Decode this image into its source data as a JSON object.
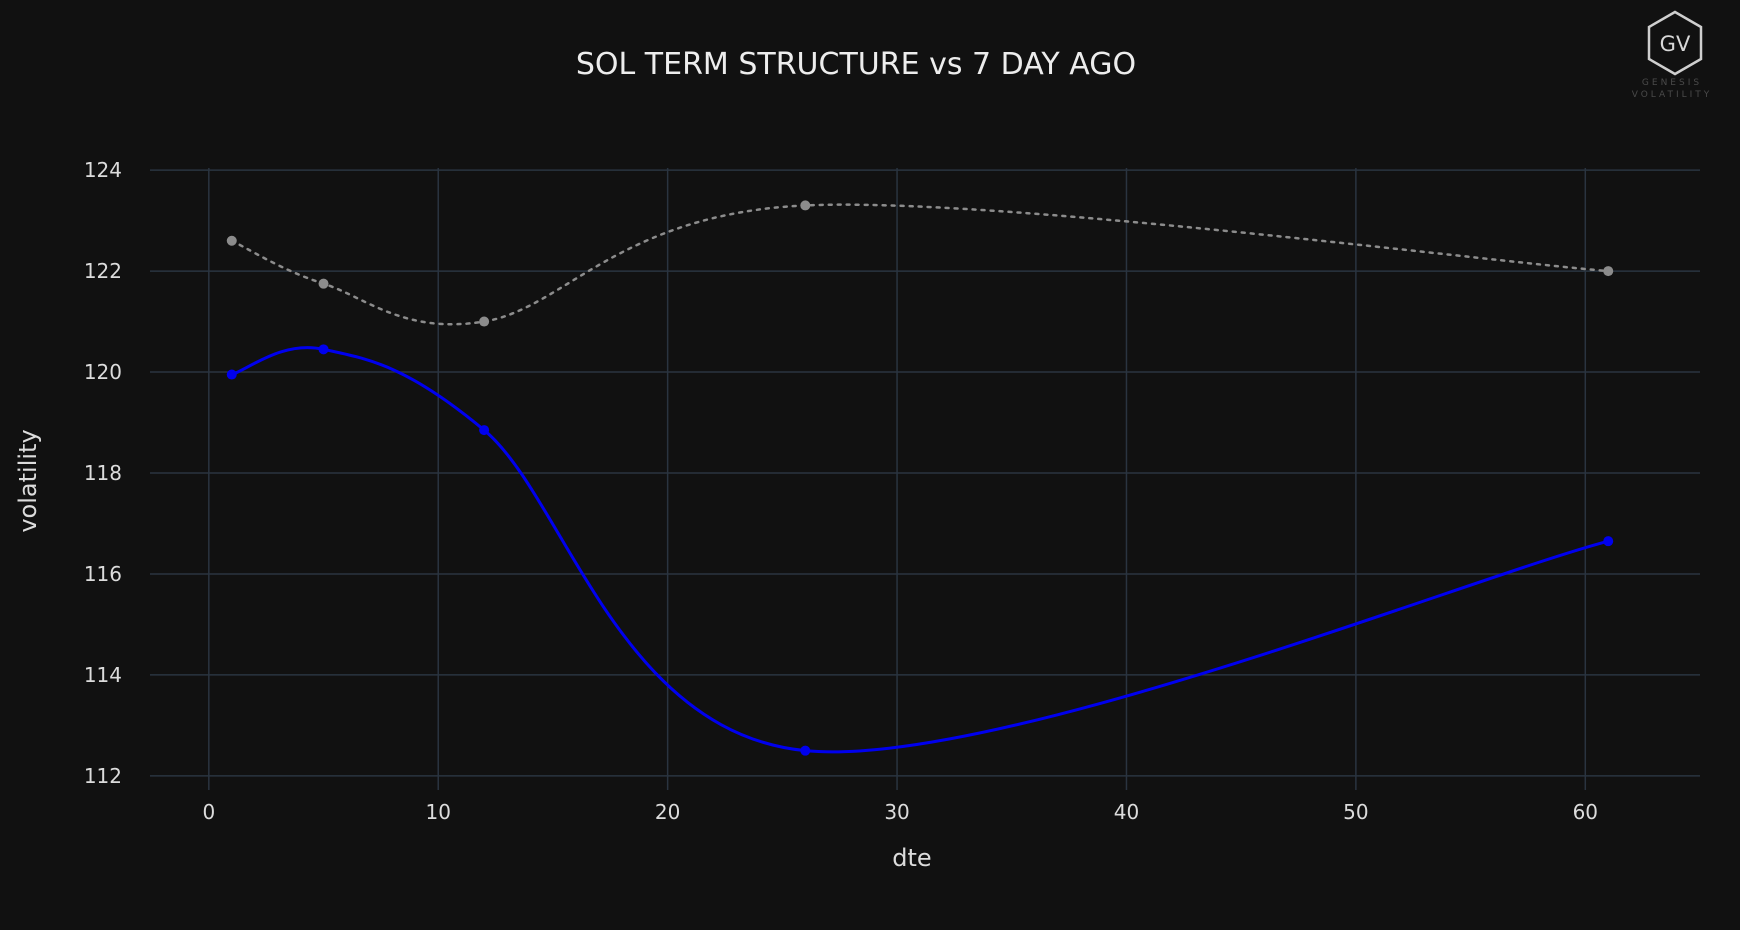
{
  "logo": {
    "initials": "GV",
    "line1": "GENESIS",
    "line2": "VOLATILITY"
  },
  "colors": {
    "background": "#111111",
    "grid": "#2a3440",
    "current_series": "#0000ee",
    "previous_series": "#8c8c8c"
  },
  "chart_data": {
    "type": "line",
    "title": "SOL TERM STRUCTURE vs 7 DAY AGO",
    "xlabel": "dte",
    "ylabel": "volatility",
    "xlim": [
      -3,
      65
    ],
    "ylim": [
      111.8,
      124.2
    ],
    "xticks": [
      0,
      10,
      20,
      30,
      40,
      50,
      60
    ],
    "yticks": [
      112,
      114,
      116,
      118,
      120,
      122,
      124
    ],
    "grid": true,
    "legend": "none",
    "series": [
      {
        "line_style": "solid",
        "color": "#0000ee",
        "x": [
          1,
          5,
          12,
          26,
          61
        ],
        "y": [
          119.95,
          120.45,
          118.85,
          112.5,
          116.65
        ]
      },
      {
        "line_style": "dotted",
        "color": "#8c8c8c",
        "x": [
          1,
          5,
          12,
          26,
          61
        ],
        "y": [
          122.6,
          121.75,
          121.0,
          123.3,
          122.0
        ]
      }
    ]
  }
}
